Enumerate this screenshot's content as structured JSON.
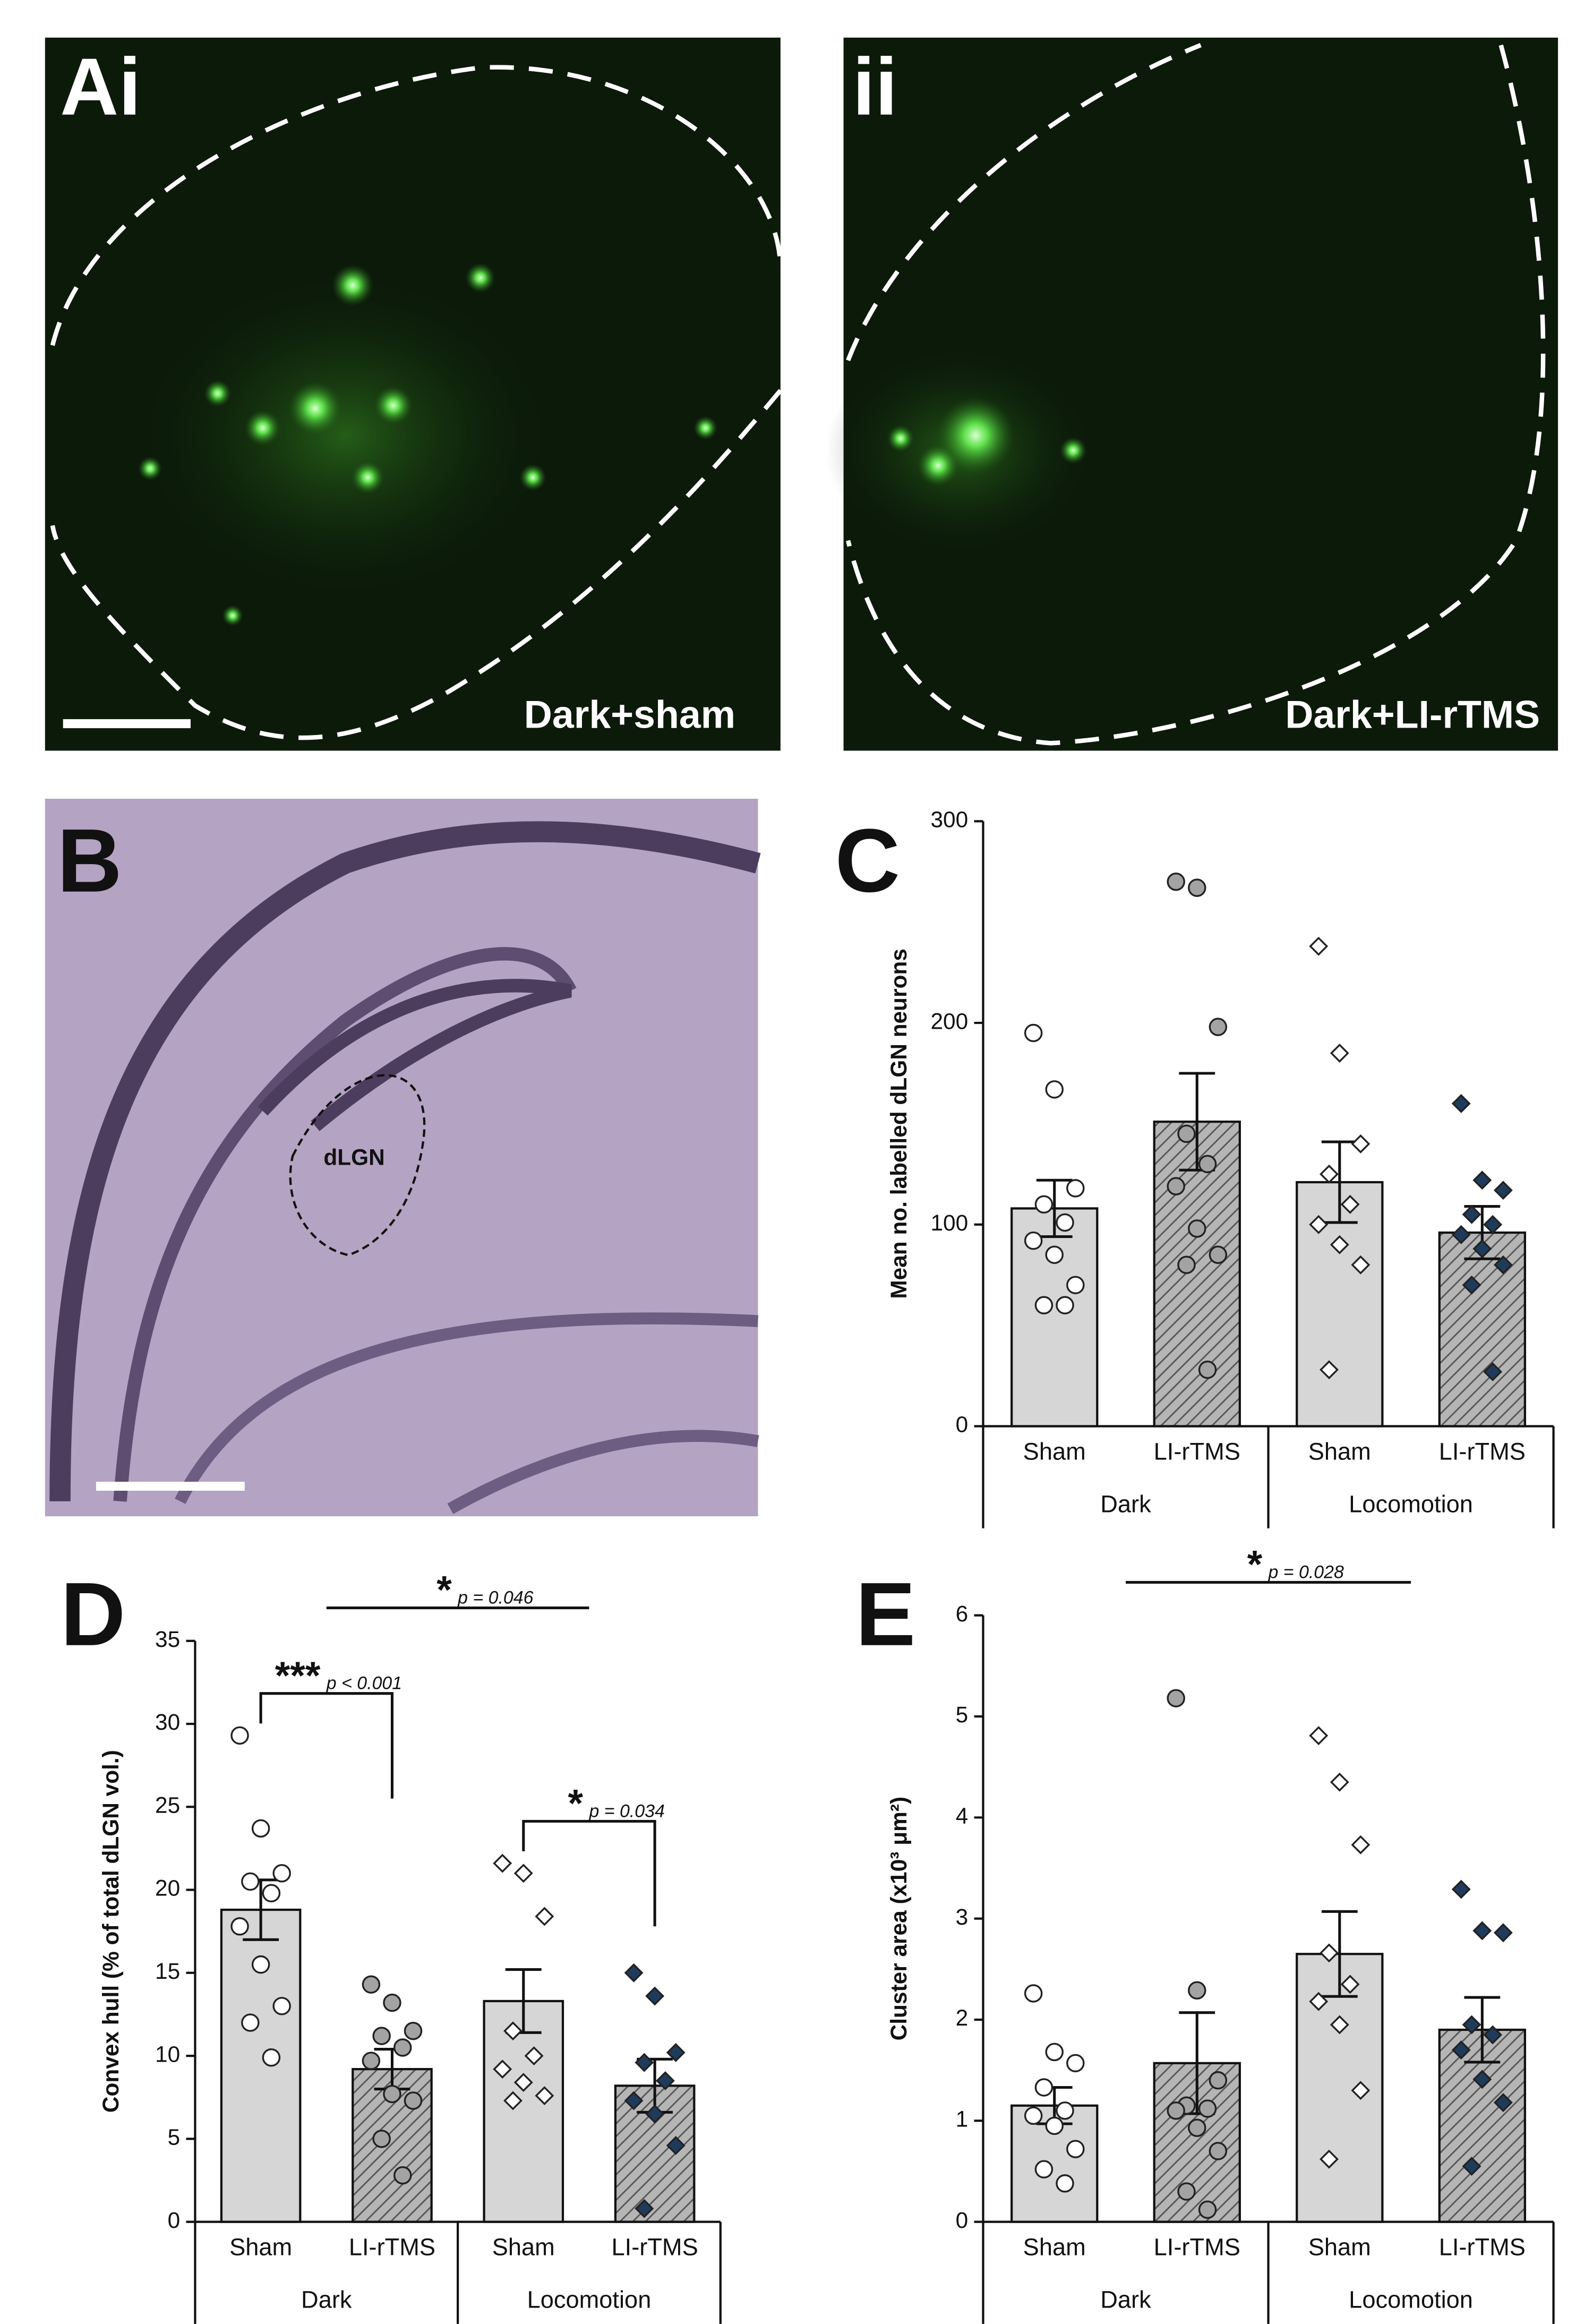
{
  "images": [
    {
      "label": "Ai",
      "caption": "Dark+sham"
    },
    {
      "label": "ii",
      "caption": "Dark+LI-rTMS"
    },
    {
      "label": "B",
      "annotation": "dLGN"
    }
  ],
  "chart_data": [
    {
      "type": "bar",
      "label": "C",
      "ylabel": "Mean no. labelled dLGN neurons",
      "categories": [
        "Sham",
        "LI-rTMS",
        "Sham",
        "LI-rTMS"
      ],
      "groups": [
        "Dark",
        "Locomotion"
      ],
      "values": [
        108,
        151,
        121,
        96
      ],
      "errors": [
        14,
        24,
        20,
        13
      ],
      "points": [
        [
          195,
          167,
          118,
          110,
          101,
          92,
          85,
          70,
          60,
          60
        ],
        [
          270,
          267,
          198,
          145,
          130,
          119,
          98,
          85,
          80,
          28
        ],
        [
          238,
          185,
          140,
          125,
          110,
          100,
          90,
          80,
          28
        ],
        [
          160,
          122,
          117,
          105,
          100,
          95,
          88,
          80,
          70,
          27
        ]
      ],
      "ylim": [
        0,
        300
      ],
      "yticks": [
        0,
        100,
        200,
        300
      ],
      "bar_colors": [
        "#d6d6d6",
        "#b5b5b5",
        "#d6d6d6",
        "#b5b5b5"
      ],
      "hatched": [
        false,
        true,
        false,
        true
      ],
      "point_shapes": [
        "circle",
        "circle",
        "diamond",
        "diamond"
      ],
      "point_colors": [
        "#ffffff",
        "#a3a3a3",
        "#ffffff",
        "#1f3b5c"
      ],
      "annotations": []
    },
    {
      "type": "bar",
      "label": "D",
      "ylabel": "Convex hull (% of total dLGN vol.)",
      "categories": [
        "Sham",
        "LI-rTMS",
        "Sham",
        "LI-rTMS"
      ],
      "groups": [
        "Dark",
        "Locomotion"
      ],
      "values": [
        18.8,
        9.2,
        13.3,
        8.2
      ],
      "errors": [
        1.8,
        1.2,
        1.9,
        1.6
      ],
      "points": [
        [
          29.3,
          23.7,
          21.0,
          20.5,
          19.8,
          17.8,
          15.5,
          13.0,
          12.0,
          9.9
        ],
        [
          14.3,
          13.2,
          11.5,
          11.2,
          10.5,
          9.7,
          7.7,
          7.3,
          5.0,
          2.8
        ],
        [
          21.6,
          21.0,
          18.4,
          11.5,
          10.0,
          9.2,
          8.4,
          7.6,
          7.3
        ],
        [
          15.0,
          13.6,
          10.2,
          9.6,
          8.5,
          7.3,
          6.5,
          4.6,
          0.8
        ]
      ],
      "ylim": [
        0,
        35
      ],
      "yticks": [
        0,
        5,
        10,
        15,
        20,
        25,
        30,
        35
      ],
      "bar_colors": [
        "#d6d6d6",
        "#b5b5b5",
        "#d6d6d6",
        "#b5b5b5"
      ],
      "hatched": [
        false,
        true,
        false,
        true
      ],
      "point_shapes": [
        "circle",
        "circle",
        "diamond",
        "diamond"
      ],
      "point_colors": [
        "#ffffff",
        "#a3a3a3",
        "#ffffff",
        "#1f3b5c"
      ],
      "annotations": [
        {
          "stars": "***",
          "p": "p < 0.001",
          "between": [
            0,
            1
          ]
        },
        {
          "stars": "*",
          "p": "p = 0.034",
          "between": [
            2,
            3
          ]
        },
        {
          "stars": "*",
          "p": "p = 0.046",
          "between_groups": [
            0,
            1
          ]
        }
      ]
    },
    {
      "type": "bar",
      "label": "E",
      "ylabel": "Cluster area (x10³ μm²)",
      "categories": [
        "Sham",
        "LI-rTMS",
        "Sham",
        "LI-rTMS"
      ],
      "groups": [
        "Dark",
        "Locomotion"
      ],
      "values": [
        1.15,
        1.57,
        2.65,
        1.9
      ],
      "errors": [
        0.18,
        0.5,
        0.42,
        0.32
      ],
      "points": [
        [
          2.26,
          1.68,
          1.57,
          1.33,
          1.1,
          1.05,
          0.95,
          0.72,
          0.52,
          0.38
        ],
        [
          5.18,
          2.29,
          1.4,
          1.15,
          1.12,
          1.1,
          0.93,
          0.7,
          0.3,
          0.12
        ],
        [
          4.81,
          4.35,
          3.73,
          2.66,
          2.35,
          2.18,
          1.95,
          1.3,
          0.62
        ],
        [
          3.29,
          2.88,
          2.86,
          1.95,
          1.85,
          1.7,
          1.41,
          1.18,
          0.55
        ]
      ],
      "ylim": [
        0,
        6
      ],
      "yticks": [
        0,
        1,
        2,
        3,
        4,
        5,
        6
      ],
      "bar_colors": [
        "#d6d6d6",
        "#b5b5b5",
        "#d6d6d6",
        "#b5b5b5"
      ],
      "hatched": [
        false,
        true,
        false,
        true
      ],
      "point_shapes": [
        "circle",
        "circle",
        "diamond",
        "diamond"
      ],
      "point_colors": [
        "#ffffff",
        "#a3a3a3",
        "#ffffff",
        "#1f3b5c"
      ],
      "annotations": [
        {
          "stars": "*",
          "p": "p = 0.028",
          "between_groups": [
            0,
            1
          ]
        }
      ]
    }
  ]
}
